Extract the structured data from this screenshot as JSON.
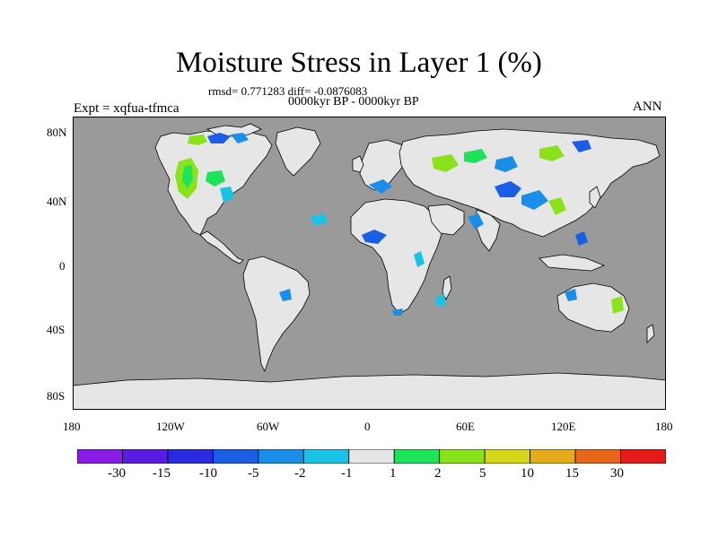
{
  "title": "Moisture Stress in Layer 1 (%)",
  "stats": "rmsd= 0.771283 diff= -0.0876083",
  "period": "0000kyr BP - 0000kyr BP",
  "experiment": "Expt = xqfua-tfmca",
  "season": "ANN",
  "lat_ticks": [
    "80N",
    "40N",
    "0",
    "40S",
    "80S"
  ],
  "lon_ticks": [
    "180",
    "120W",
    "60W",
    "0",
    "60E",
    "120E",
    "180"
  ],
  "colorbar": {
    "colors": [
      "#8a1ae6",
      "#5a1ce4",
      "#2a2ae2",
      "#1a5ee6",
      "#1a8ee8",
      "#1ac2e6",
      "#e6e6e6",
      "#1ee25a",
      "#8ae21a",
      "#d6d61a",
      "#e6aa1a",
      "#e6661a",
      "#e61a1a"
    ],
    "labels": [
      "-30",
      "-15",
      "-10",
      "-5",
      "-2",
      "-1",
      "1",
      "2",
      "5",
      "10",
      "15",
      "30"
    ]
  },
  "colors": {
    "ocean": "#9a9a9a",
    "land": "#e6e6e6",
    "coast": "#000000"
  }
}
